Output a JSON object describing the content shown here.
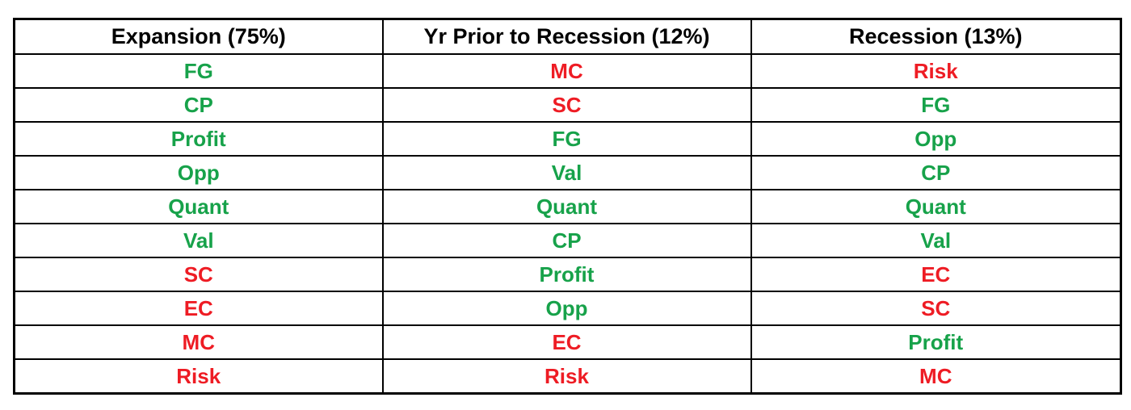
{
  "colors": {
    "green": "#17a24a",
    "red": "#ee1c24",
    "border": "#000000"
  },
  "table": {
    "headers": [
      "Expansion (75%)",
      "Yr Prior to Recession (12%)",
      "Recession (13%)"
    ],
    "rows": [
      [
        {
          "text": "FG",
          "color": "green"
        },
        {
          "text": "MC",
          "color": "red"
        },
        {
          "text": "Risk",
          "color": "red"
        }
      ],
      [
        {
          "text": "CP",
          "color": "green"
        },
        {
          "text": "SC",
          "color": "red"
        },
        {
          "text": "FG",
          "color": "green"
        }
      ],
      [
        {
          "text": "Profit",
          "color": "green"
        },
        {
          "text": "FG",
          "color": "green"
        },
        {
          "text": "Opp",
          "color": "green"
        }
      ],
      [
        {
          "text": "Opp",
          "color": "green"
        },
        {
          "text": "Val",
          "color": "green"
        },
        {
          "text": "CP",
          "color": "green"
        }
      ],
      [
        {
          "text": "Quant",
          "color": "green"
        },
        {
          "text": "Quant",
          "color": "green"
        },
        {
          "text": "Quant",
          "color": "green"
        }
      ],
      [
        {
          "text": "Val",
          "color": "green"
        },
        {
          "text": "CP",
          "color": "green"
        },
        {
          "text": "Val",
          "color": "green"
        }
      ],
      [
        {
          "text": "SC",
          "color": "red"
        },
        {
          "text": "Profit",
          "color": "green"
        },
        {
          "text": "EC",
          "color": "red"
        }
      ],
      [
        {
          "text": "EC",
          "color": "red"
        },
        {
          "text": "Opp",
          "color": "green"
        },
        {
          "text": "SC",
          "color": "red"
        }
      ],
      [
        {
          "text": "MC",
          "color": "red"
        },
        {
          "text": "EC",
          "color": "red"
        },
        {
          "text": "Profit",
          "color": "green"
        }
      ],
      [
        {
          "text": "Risk",
          "color": "red"
        },
        {
          "text": "Risk",
          "color": "red"
        },
        {
          "text": "MC",
          "color": "red"
        }
      ]
    ]
  }
}
